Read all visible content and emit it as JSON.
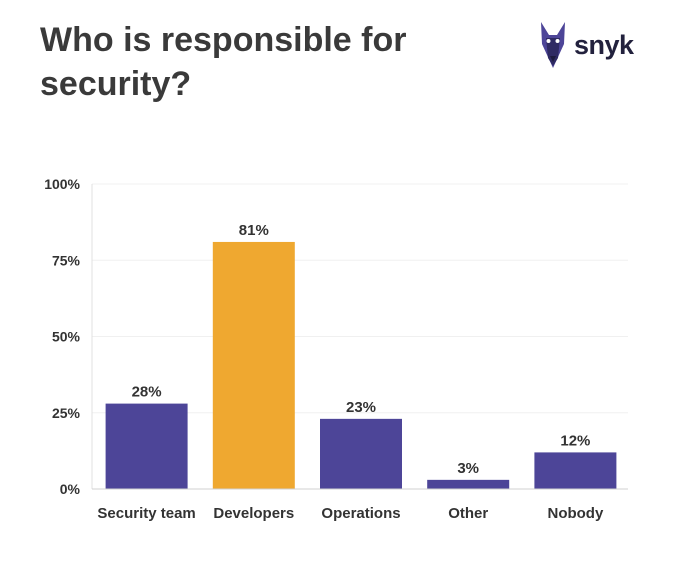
{
  "title": "Who is responsible for security?",
  "logo": {
    "name": "snyk",
    "icon": "doberman-icon"
  },
  "colors": {
    "default_bar": "#4d4598",
    "highlight_bar": "#efa830",
    "text": "#333333"
  },
  "chart_data": {
    "type": "bar",
    "title": "Who is responsible for security?",
    "xlabel": "",
    "ylabel": "",
    "ylim": [
      0,
      100
    ],
    "yticks": [
      0,
      25,
      50,
      75,
      100
    ],
    "ytick_labels": [
      "0%",
      "25%",
      "50%",
      "75%",
      "100%"
    ],
    "grid": true,
    "categories": [
      "Security team",
      "Developers",
      "Operations",
      "Other",
      "Nobody"
    ],
    "values": [
      28,
      81,
      23,
      3,
      12
    ],
    "data_labels": [
      "28%",
      "81%",
      "23%",
      "3%",
      "12%"
    ],
    "highlight": "Developers"
  }
}
